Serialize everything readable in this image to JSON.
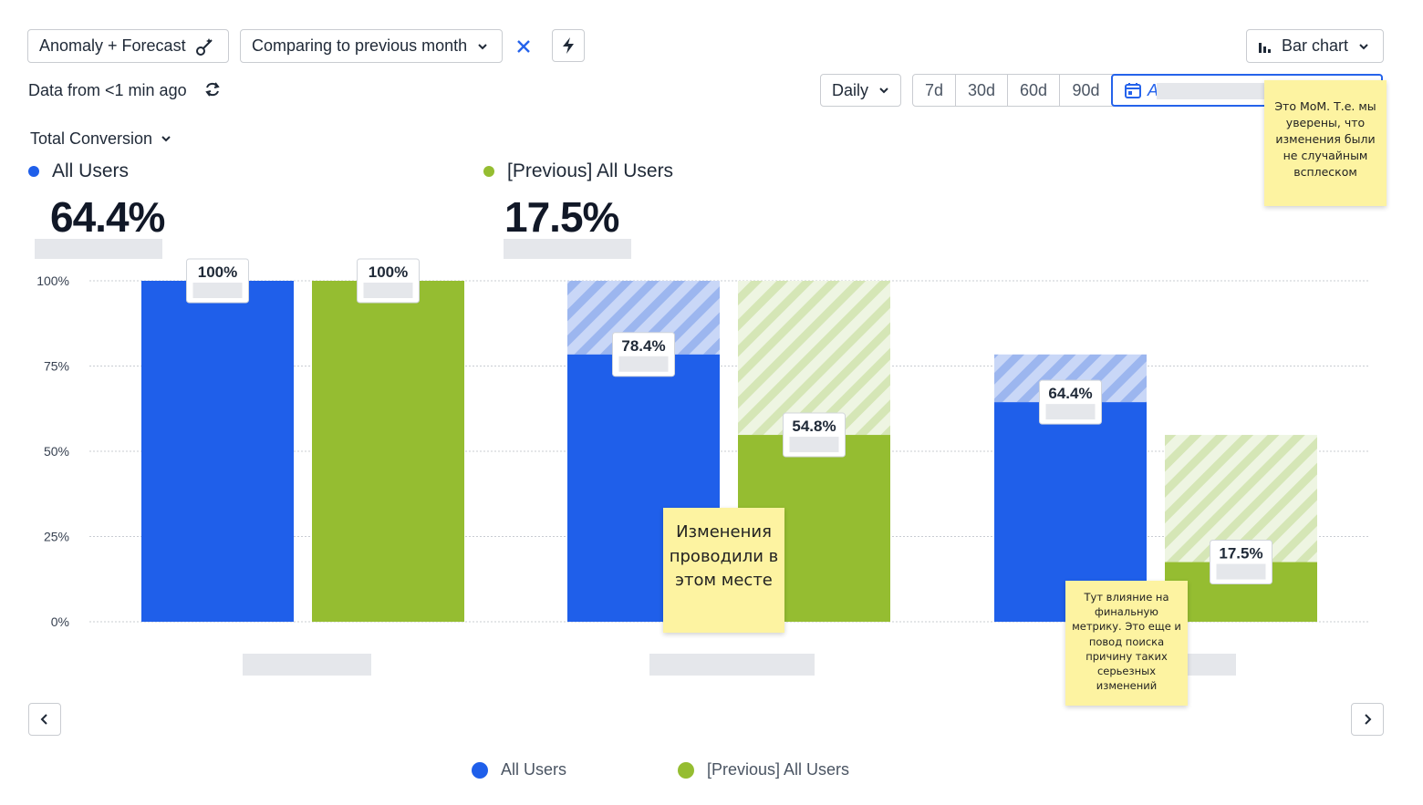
{
  "toolbar": {
    "analysis_label": "Anomaly + Forecast",
    "comparison_label": "Comparing to previous month",
    "chart_type_label": "Bar chart"
  },
  "data_status": "Data from <1 min ago",
  "interval_label": "Daily",
  "ranges": [
    "7d",
    "30d",
    "60d",
    "90d"
  ],
  "date_range_text": "A",
  "metric_selector": "Total Conversion",
  "metrics": [
    {
      "name": "All Users",
      "value": "64.4%",
      "color": "#1f5fea"
    },
    {
      "name": "[Previous] All Users",
      "value": "17.5%",
      "color": "#95bd31"
    }
  ],
  "chart_data": {
    "type": "bar",
    "categories": [
      "",
      "",
      ""
    ],
    "ylim": [
      0,
      100
    ],
    "yticks": [
      "0%",
      "25%",
      "50%",
      "75%",
      "100%"
    ],
    "grid": true,
    "series": [
      {
        "name": "All Users",
        "color": "#1f5fea",
        "hatch_color": "#a9c0f1",
        "values": [
          100,
          78.4,
          64.4
        ],
        "labels": [
          "100%",
          "78.4%",
          "64.4%"
        ],
        "previous_step": [
          100,
          100,
          78.4
        ]
      },
      {
        "name": "[Previous] All Users",
        "color": "#95bd31",
        "hatch_color": "#d6e6ba",
        "values": [
          100,
          54.8,
          17.5
        ],
        "labels": [
          "100%",
          "54.8%",
          "17.5%"
        ],
        "previous_step": [
          100,
          100,
          54.8
        ]
      }
    ],
    "legend": "bottom-center"
  },
  "notes": {
    "top_right": "Это MoM. Т.е. мы уверены, что изменения были не случайным всплеском",
    "middle": "Изменения проводили в этом месте",
    "bottom_right": "Тут влияние на финальную метрику. Это еще и повод поиска причину таких серьезных изменений"
  }
}
